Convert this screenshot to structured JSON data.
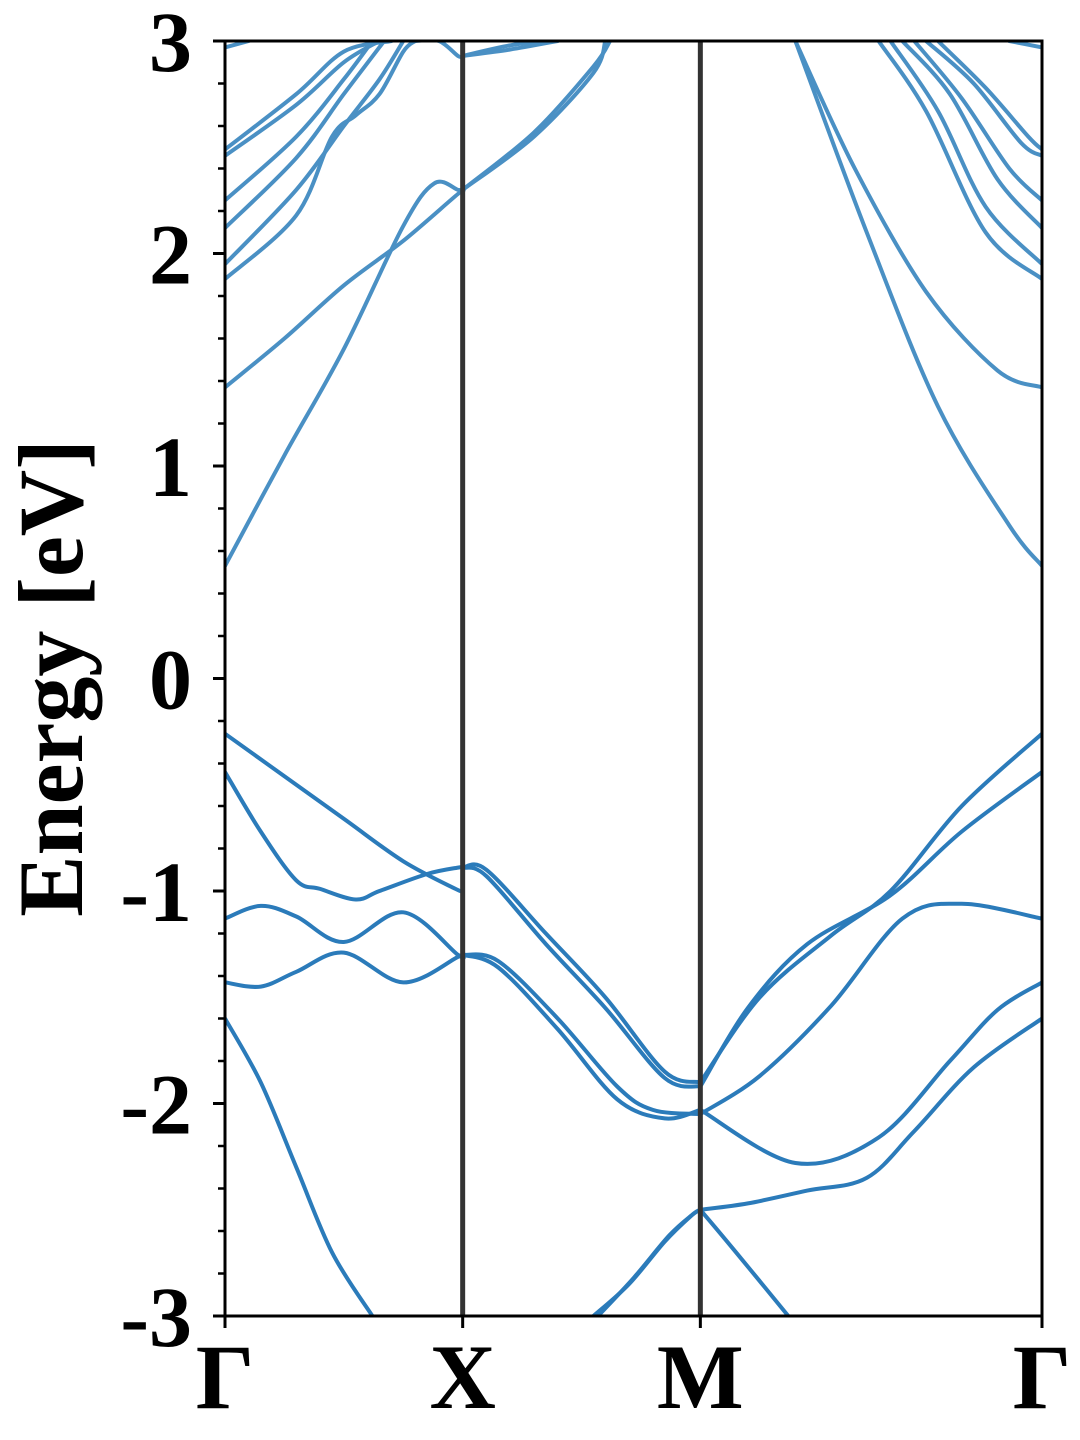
{
  "chart_data": {
    "type": "line",
    "title": "",
    "xlabel": "",
    "ylabel": "Energy [eV]",
    "ylim": [
      -3,
      3
    ],
    "xlim": [
      0,
      3.4375
    ],
    "yticks": [
      {
        "value": 3,
        "label": "3"
      },
      {
        "value": 2,
        "label": "2"
      },
      {
        "value": 1,
        "label": "1"
      },
      {
        "value": 0,
        "label": "0"
      },
      {
        "value": -1,
        "label": "-1"
      },
      {
        "value": -2,
        "label": "-2"
      },
      {
        "value": -3,
        "label": "-3"
      }
    ],
    "minor_ytick_step": 0.2,
    "xticks": [
      {
        "value": 0,
        "label": "Γ"
      },
      {
        "value": 1,
        "label": "X"
      },
      {
        "value": 2,
        "label": "M"
      },
      {
        "value": 3.4375,
        "label": "Γ"
      }
    ],
    "kpoint_lines": [
      1,
      2
    ],
    "grid": false,
    "colors": {
      "band": "#2b7bba",
      "band_light": "#4a90c4",
      "divider": "#333333",
      "axis": "#000000"
    },
    "series": [
      {
        "values": [
          [
            0,
            -0.26
          ],
          [
            0.25,
            -0.46
          ],
          [
            0.5,
            -0.66
          ],
          [
            0.75,
            -0.86
          ],
          [
            0.97,
            -0.99
          ],
          [
            1,
            -1.0
          ]
        ]
      },
      {
        "values": [
          [
            0,
            -0.44
          ],
          [
            0.15,
            -0.72
          ],
          [
            0.3,
            -0.95
          ],
          [
            0.4,
            -0.99
          ],
          [
            0.55,
            -1.04
          ],
          [
            0.65,
            -1.0
          ],
          [
            0.85,
            -0.92
          ],
          [
            0.98,
            -0.89
          ],
          [
            1,
            -0.89
          ]
        ]
      },
      {
        "values": [
          [
            0,
            -1.13
          ],
          [
            0.15,
            -1.07
          ],
          [
            0.3,
            -1.12
          ],
          [
            0.5,
            -1.24
          ],
          [
            0.75,
            -1.1
          ],
          [
            0.98,
            -1.3
          ],
          [
            1,
            -1.3
          ]
        ]
      },
      {
        "values": [
          [
            0,
            -1.43
          ],
          [
            0.15,
            -1.45
          ],
          [
            0.3,
            -1.38
          ],
          [
            0.5,
            -1.29
          ],
          [
            0.75,
            -1.43
          ],
          [
            0.98,
            -1.31
          ],
          [
            1,
            -1.3
          ]
        ]
      },
      {
        "values": [
          [
            0,
            -1.6
          ],
          [
            0.15,
            -1.9
          ],
          [
            0.3,
            -2.3
          ],
          [
            0.45,
            -2.7
          ],
          [
            0.62,
            -3.0
          ]
        ]
      },
      {
        "values": [
          [
            0,
            0.53
          ],
          [
            0.25,
            1.05
          ],
          [
            0.5,
            1.55
          ],
          [
            0.75,
            2.13
          ],
          [
            0.88,
            2.33
          ],
          [
            0.98,
            2.3
          ],
          [
            1,
            2.3
          ]
        ]
      },
      {
        "values": [
          [
            0,
            1.37
          ],
          [
            0.25,
            1.6
          ],
          [
            0.5,
            1.85
          ],
          [
            0.75,
            2.06
          ],
          [
            0.98,
            2.28
          ],
          [
            1,
            2.29
          ]
        ]
      },
      {
        "values": [
          [
            0,
            1.88
          ],
          [
            0.3,
            2.18
          ],
          [
            0.45,
            2.55
          ],
          [
            0.55,
            2.65
          ],
          [
            0.65,
            2.75
          ],
          [
            0.75,
            2.95
          ],
          [
            0.8,
            3.0
          ]
        ]
      },
      {
        "values": [
          [
            0,
            1.95
          ],
          [
            0.3,
            2.3
          ],
          [
            0.5,
            2.6
          ],
          [
            0.65,
            2.82
          ],
          [
            0.75,
            3.0
          ]
        ]
      },
      {
        "values": [
          [
            0,
            2.12
          ],
          [
            0.3,
            2.45
          ],
          [
            0.5,
            2.75
          ],
          [
            0.67,
            3.0
          ]
        ]
      },
      {
        "values": [
          [
            0,
            2.25
          ],
          [
            0.3,
            2.55
          ],
          [
            0.5,
            2.82
          ],
          [
            0.62,
            3.0
          ]
        ]
      },
      {
        "values": [
          [
            0,
            2.46
          ],
          [
            0.3,
            2.7
          ],
          [
            0.5,
            2.9
          ],
          [
            0.65,
            3.0
          ]
        ]
      },
      {
        "values": [
          [
            0,
            2.49
          ],
          [
            0.3,
            2.75
          ],
          [
            0.5,
            2.95
          ],
          [
            0.7,
            3.0
          ]
        ]
      },
      {
        "values": [
          [
            0,
            2.97
          ],
          [
            0.1,
            3.0
          ]
        ]
      },
      {
        "values": [
          [
            0.8,
            3.0
          ],
          [
            0.9,
            3.0
          ],
          [
            0.98,
            2.93
          ],
          [
            1,
            2.93
          ]
        ]
      },
      {
        "values": [
          [
            1,
            -0.89
          ],
          [
            1.1,
            -0.9
          ],
          [
            1.35,
            -1.2
          ],
          [
            1.6,
            -1.5
          ],
          [
            1.85,
            -1.85
          ],
          [
            2,
            -1.9
          ]
        ]
      },
      {
        "values": [
          [
            1,
            -0.89
          ],
          [
            1.1,
            -0.93
          ],
          [
            1.35,
            -1.25
          ],
          [
            1.6,
            -1.55
          ],
          [
            1.85,
            -1.88
          ],
          [
            2,
            -1.92
          ]
        ]
      },
      {
        "values": [
          [
            1,
            -1.3
          ],
          [
            1.15,
            -1.33
          ],
          [
            1.4,
            -1.6
          ],
          [
            1.65,
            -1.92
          ],
          [
            1.8,
            -2.03
          ],
          [
            2,
            -2.05
          ]
        ]
      },
      {
        "values": [
          [
            1,
            -1.3
          ],
          [
            1.15,
            -1.36
          ],
          [
            1.4,
            -1.65
          ],
          [
            1.65,
            -1.98
          ],
          [
            1.85,
            -2.07
          ],
          [
            2,
            -2.03
          ]
        ]
      },
      {
        "values": [
          [
            1,
            2.3
          ],
          [
            1.3,
            2.55
          ],
          [
            1.55,
            2.85
          ],
          [
            1.6,
            3.0
          ]
        ]
      },
      {
        "values": [
          [
            1,
            2.3
          ],
          [
            1.3,
            2.57
          ],
          [
            1.55,
            2.88
          ],
          [
            1.62,
            3.0
          ]
        ]
      },
      {
        "values": [
          [
            1,
            2.93
          ],
          [
            1.2,
            2.96
          ],
          [
            1.4,
            3.0
          ]
        ]
      },
      {
        "values": [
          [
            1,
            2.93
          ],
          [
            1.2,
            2.98
          ],
          [
            1.35,
            3.0
          ]
        ]
      },
      {
        "values": [
          [
            1.55,
            -3.0
          ],
          [
            1.7,
            -2.85
          ],
          [
            1.85,
            -2.65
          ],
          [
            1.96,
            -2.53
          ],
          [
            2,
            -2.5
          ]
        ]
      },
      {
        "values": [
          [
            1.57,
            -3.0
          ],
          [
            1.72,
            -2.82
          ],
          [
            1.87,
            -2.62
          ],
          [
            1.97,
            -2.52
          ],
          [
            2,
            -2.5
          ]
        ]
      },
      {
        "values": [
          [
            2,
            -1.9
          ],
          [
            2.25,
            -1.5
          ],
          [
            2.55,
            -1.21
          ],
          [
            2.8,
            -1.0
          ],
          [
            3.1,
            -0.6
          ],
          [
            3.4375,
            -0.26
          ]
        ]
      },
      {
        "values": [
          [
            2,
            -1.92
          ],
          [
            2.2,
            -1.55
          ],
          [
            2.45,
            -1.25
          ],
          [
            2.8,
            -1.02
          ],
          [
            3.1,
            -0.72
          ],
          [
            3.4375,
            -0.44
          ]
        ]
      },
      {
        "values": [
          [
            2,
            -2.05
          ],
          [
            2.25,
            -1.87
          ],
          [
            2.55,
            -1.54
          ],
          [
            2.85,
            -1.13
          ],
          [
            3.1,
            -1.06
          ],
          [
            3.4375,
            -1.13
          ]
        ]
      },
      {
        "values": [
          [
            2,
            -2.03
          ],
          [
            2.4,
            -2.28
          ],
          [
            2.75,
            -2.16
          ],
          [
            3.05,
            -1.8
          ],
          [
            3.25,
            -1.56
          ],
          [
            3.4375,
            -1.43
          ]
        ]
      },
      {
        "values": [
          [
            2,
            -2.5
          ],
          [
            2.2,
            -2.47
          ],
          [
            2.45,
            -2.41
          ],
          [
            2.7,
            -2.35
          ],
          [
            2.9,
            -2.13
          ],
          [
            3.15,
            -1.83
          ],
          [
            3.4375,
            -1.6
          ]
        ]
      },
      {
        "values": [
          [
            2,
            -2.5
          ],
          [
            2.15,
            -2.7
          ],
          [
            2.37,
            -3.0
          ]
        ]
      },
      {
        "values": [
          [
            2.4,
            3.0
          ],
          [
            2.7,
            2.1
          ],
          [
            3.0,
            1.28
          ],
          [
            3.3,
            0.72
          ],
          [
            3.4375,
            0.53
          ]
        ]
      },
      {
        "values": [
          [
            2.4,
            3.0
          ],
          [
            2.65,
            2.4
          ],
          [
            2.95,
            1.82
          ],
          [
            3.25,
            1.45
          ],
          [
            3.4375,
            1.37
          ]
        ]
      },
      {
        "values": [
          [
            2.75,
            3.0
          ],
          [
            2.95,
            2.67
          ],
          [
            3.2,
            2.1
          ],
          [
            3.4375,
            1.88
          ]
        ]
      },
      {
        "values": [
          [
            2.8,
            3.0
          ],
          [
            3.0,
            2.67
          ],
          [
            3.2,
            2.22
          ],
          [
            3.4375,
            1.95
          ]
        ]
      },
      {
        "values": [
          [
            2.85,
            3.0
          ],
          [
            3.05,
            2.75
          ],
          [
            3.25,
            2.35
          ],
          [
            3.4375,
            2.12
          ]
        ]
      },
      {
        "values": [
          [
            2.9,
            3.0
          ],
          [
            3.1,
            2.73
          ],
          [
            3.3,
            2.4
          ],
          [
            3.4375,
            2.25
          ]
        ]
      },
      {
        "values": [
          [
            2.95,
            3.0
          ],
          [
            3.15,
            2.8
          ],
          [
            3.35,
            2.52
          ],
          [
            3.4375,
            2.46
          ]
        ]
      },
      {
        "values": [
          [
            3.0,
            3.0
          ],
          [
            3.2,
            2.78
          ],
          [
            3.38,
            2.55
          ],
          [
            3.4375,
            2.49
          ]
        ]
      },
      {
        "values": [
          [
            3.3,
            3.0
          ],
          [
            3.4375,
            2.97
          ]
        ]
      }
    ]
  }
}
